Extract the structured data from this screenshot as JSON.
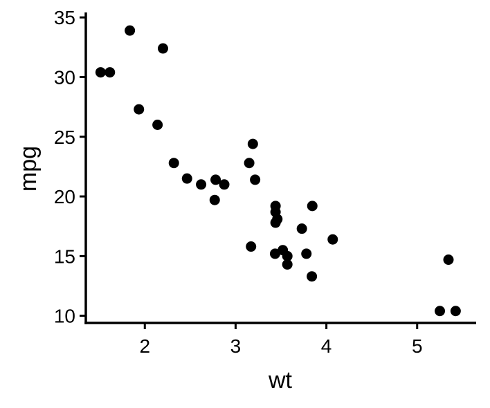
{
  "chart_data": {
    "type": "scatter",
    "title": "",
    "xlabel": "wt",
    "ylabel": "mpg",
    "xlim": [
      1.35,
      5.65
    ],
    "ylim": [
      9.4,
      35.3
    ],
    "x_ticks": [
      2,
      3,
      4,
      5
    ],
    "y_ticks": [
      10,
      15,
      20,
      25,
      30,
      35
    ],
    "grid": false,
    "legend": false,
    "point_color": "#000000",
    "axis_color": "#000000",
    "series": [
      {
        "x": [
          2.62,
          2.875,
          2.32,
          3.215,
          3.44,
          3.46,
          3.57,
          3.19,
          3.15,
          3.44,
          3.44,
          4.07,
          3.73,
          3.78,
          5.25,
          5.424,
          5.345,
          2.2,
          1.615,
          1.835,
          2.465,
          3.52,
          3.435,
          3.84,
          3.845,
          1.935,
          2.14,
          1.513,
          3.17,
          2.77,
          3.57,
          2.78
        ],
        "y": [
          21.0,
          21.0,
          22.8,
          21.4,
          18.7,
          18.1,
          14.3,
          24.4,
          22.8,
          19.2,
          17.8,
          16.4,
          17.3,
          15.2,
          10.4,
          10.4,
          14.7,
          32.4,
          30.4,
          33.9,
          21.5,
          15.5,
          15.2,
          13.3,
          19.2,
          27.3,
          26.0,
          30.4,
          15.8,
          19.7,
          15.0,
          21.4
        ]
      }
    ]
  }
}
